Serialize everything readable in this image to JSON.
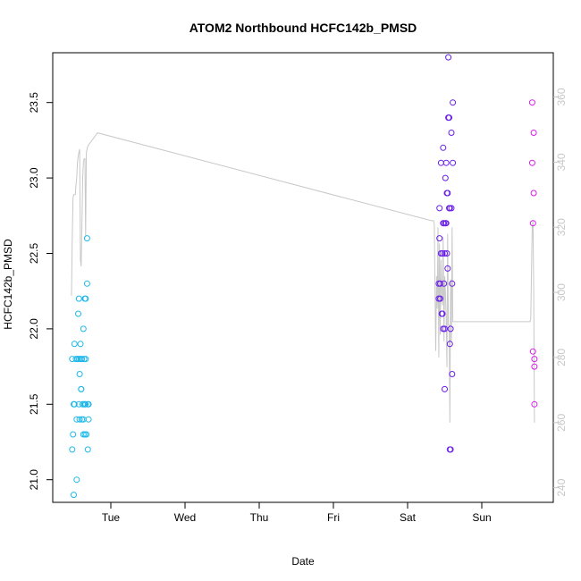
{
  "chart_data": {
    "type": "scatter",
    "title": "ATOM2 Northbound HCFC142b_PMSD",
    "xlabel": "Date",
    "ylabel": "HCFC142b_PMSD",
    "x_ticks": [
      "Tue",
      "Wed",
      "Thu",
      "Fri",
      "Sat",
      "Sun"
    ],
    "y_ticks": [
      "21.0",
      "21.5",
      "22.0",
      "22.5",
      "23.0",
      "23.5"
    ],
    "y2_ticks": [
      "240",
      "260",
      "280",
      "300",
      "320",
      "340",
      "360"
    ],
    "ylim": [
      20.85,
      23.83
    ],
    "y2lim": [
      235.5,
      373.6
    ],
    "grid": false,
    "colors": {
      "series1": "#1fb8e8",
      "series2": "#6a1ee8",
      "series3": "#d61ee8",
      "line": "#c8c8c8"
    },
    "series": [
      {
        "points": [
          [
            -0.52,
            21.2
          ],
          [
            -0.52,
            21.8
          ],
          [
            -0.51,
            21.3
          ],
          [
            -0.5,
            21.5
          ],
          [
            -0.5,
            20.9
          ],
          [
            -0.49,
            21.9
          ],
          [
            -0.49,
            21.5
          ],
          [
            -0.47,
            21.8
          ],
          [
            -0.46,
            21.0
          ],
          [
            -0.46,
            21.4
          ],
          [
            -0.45,
            21.8
          ],
          [
            -0.44,
            22.1
          ],
          [
            -0.43,
            22.2
          ],
          [
            -0.43,
            21.8
          ],
          [
            -0.43,
            21.5
          ],
          [
            -0.42,
            21.7
          ],
          [
            -0.42,
            21.4
          ],
          [
            -0.41,
            21.8
          ],
          [
            -0.41,
            21.9
          ],
          [
            -0.4,
            21.6
          ],
          [
            -0.4,
            21.6
          ],
          [
            -0.39,
            21.4
          ],
          [
            -0.39,
            21.8
          ],
          [
            -0.38,
            21.5
          ],
          [
            -0.37,
            22.0
          ],
          [
            -0.37,
            21.3
          ],
          [
            -0.37,
            21.4
          ],
          [
            -0.36,
            21.8
          ],
          [
            -0.36,
            21.5
          ],
          [
            -0.35,
            22.2
          ],
          [
            -0.35,
            21.3
          ],
          [
            -0.35,
            21.5
          ],
          [
            -0.34,
            22.2
          ],
          [
            -0.34,
            21.8
          ],
          [
            -0.34,
            21.5
          ],
          [
            -0.33,
            21.3
          ],
          [
            -0.32,
            22.6
          ],
          [
            -0.32,
            22.3
          ],
          [
            -0.31,
            21.2
          ],
          [
            -0.31,
            21.5
          ],
          [
            -0.3,
            21.4
          ],
          [
            -0.3,
            21.5
          ]
        ]
      },
      {
        "points": [
          [
            4.42,
            22.3
          ],
          [
            4.42,
            22.2
          ],
          [
            4.43,
            22.8
          ],
          [
            4.43,
            22.6
          ],
          [
            4.44,
            22.3
          ],
          [
            4.44,
            22.2
          ],
          [
            4.45,
            23.1
          ],
          [
            4.45,
            22.5
          ],
          [
            4.46,
            22.1
          ],
          [
            4.47,
            22.5
          ],
          [
            4.47,
            22.1
          ],
          [
            4.48,
            23.2
          ],
          [
            4.48,
            22.7
          ],
          [
            4.48,
            22.0
          ],
          [
            4.49,
            22.7
          ],
          [
            4.49,
            22.3
          ],
          [
            4.5,
            22.5
          ],
          [
            4.5,
            22.0
          ],
          [
            4.5,
            21.6
          ],
          [
            4.51,
            23.0
          ],
          [
            4.51,
            22.7
          ],
          [
            4.52,
            22.7
          ],
          [
            4.52,
            23.1
          ],
          [
            4.53,
            22.9
          ],
          [
            4.53,
            22.5
          ],
          [
            4.54,
            22.4
          ],
          [
            4.54,
            22.9
          ],
          [
            4.55,
            23.8
          ],
          [
            4.55,
            23.4
          ],
          [
            4.56,
            23.4
          ],
          [
            4.56,
            22.8
          ],
          [
            4.57,
            22.8
          ],
          [
            4.57,
            21.9
          ],
          [
            4.57,
            21.2
          ],
          [
            4.58,
            21.2
          ],
          [
            4.58,
            22.0
          ],
          [
            4.59,
            23.3
          ],
          [
            4.59,
            22.8
          ],
          [
            4.6,
            22.3
          ],
          [
            4.6,
            21.7
          ],
          [
            4.61,
            23.5
          ],
          [
            4.61,
            23.1
          ]
        ]
      },
      {
        "points": [
          [
            5.68,
            23.5
          ],
          [
            5.68,
            23.1
          ],
          [
            5.69,
            22.7
          ],
          [
            5.69,
            21.85
          ],
          [
            5.7,
            23.3
          ],
          [
            5.7,
            22.9
          ],
          [
            5.71,
            21.75
          ],
          [
            5.71,
            21.8
          ],
          [
            5.71,
            21.5
          ]
        ]
      }
    ],
    "line_y2": [
      [
        -0.53,
        299
      ],
      [
        -0.52,
        316
      ],
      [
        -0.51,
        329
      ],
      [
        -0.5,
        330
      ],
      [
        -0.49,
        330
      ],
      [
        -0.48,
        330
      ],
      [
        -0.47,
        333
      ],
      [
        -0.46,
        335
      ],
      [
        -0.45,
        340
      ],
      [
        -0.44,
        342
      ],
      [
        -0.43,
        343
      ],
      [
        -0.42,
        344
      ],
      [
        -0.41,
        310
      ],
      [
        -0.4,
        308
      ],
      [
        -0.39,
        320
      ],
      [
        -0.38,
        335
      ],
      [
        -0.37,
        340
      ],
      [
        -0.36,
        341
      ],
      [
        -0.35,
        341
      ],
      [
        -0.34,
        317
      ],
      [
        -0.33,
        343
      ],
      [
        -0.31,
        345
      ],
      [
        -0.18,
        349
      ],
      [
        4.32,
        322
      ],
      [
        4.35,
        322
      ],
      [
        4.36,
        321
      ],
      [
        4.37,
        300
      ],
      [
        4.38,
        282
      ],
      [
        4.39,
        305
      ],
      [
        4.4,
        295
      ],
      [
        4.41,
        320
      ],
      [
        4.42,
        280
      ],
      [
        4.43,
        315
      ],
      [
        4.44,
        287
      ],
      [
        4.45,
        310
      ],
      [
        4.46,
        300
      ],
      [
        4.47,
        296
      ],
      [
        4.48,
        317
      ],
      [
        4.49,
        285
      ],
      [
        4.5,
        305
      ],
      [
        4.51,
        300
      ],
      [
        4.52,
        292
      ],
      [
        4.53,
        277
      ],
      [
        4.54,
        318
      ],
      [
        4.55,
        290
      ],
      [
        4.56,
        290
      ],
      [
        4.57,
        260
      ],
      [
        4.58,
        304
      ],
      [
        4.59,
        285
      ],
      [
        4.6,
        320
      ],
      [
        4.61,
        291
      ],
      [
        4.9,
        291
      ],
      [
        5.65,
        291
      ],
      [
        5.66,
        292
      ],
      [
        5.68,
        320
      ],
      [
        5.69,
        322
      ],
      [
        5.7,
        300
      ],
      [
        5.71,
        260
      ]
    ]
  }
}
